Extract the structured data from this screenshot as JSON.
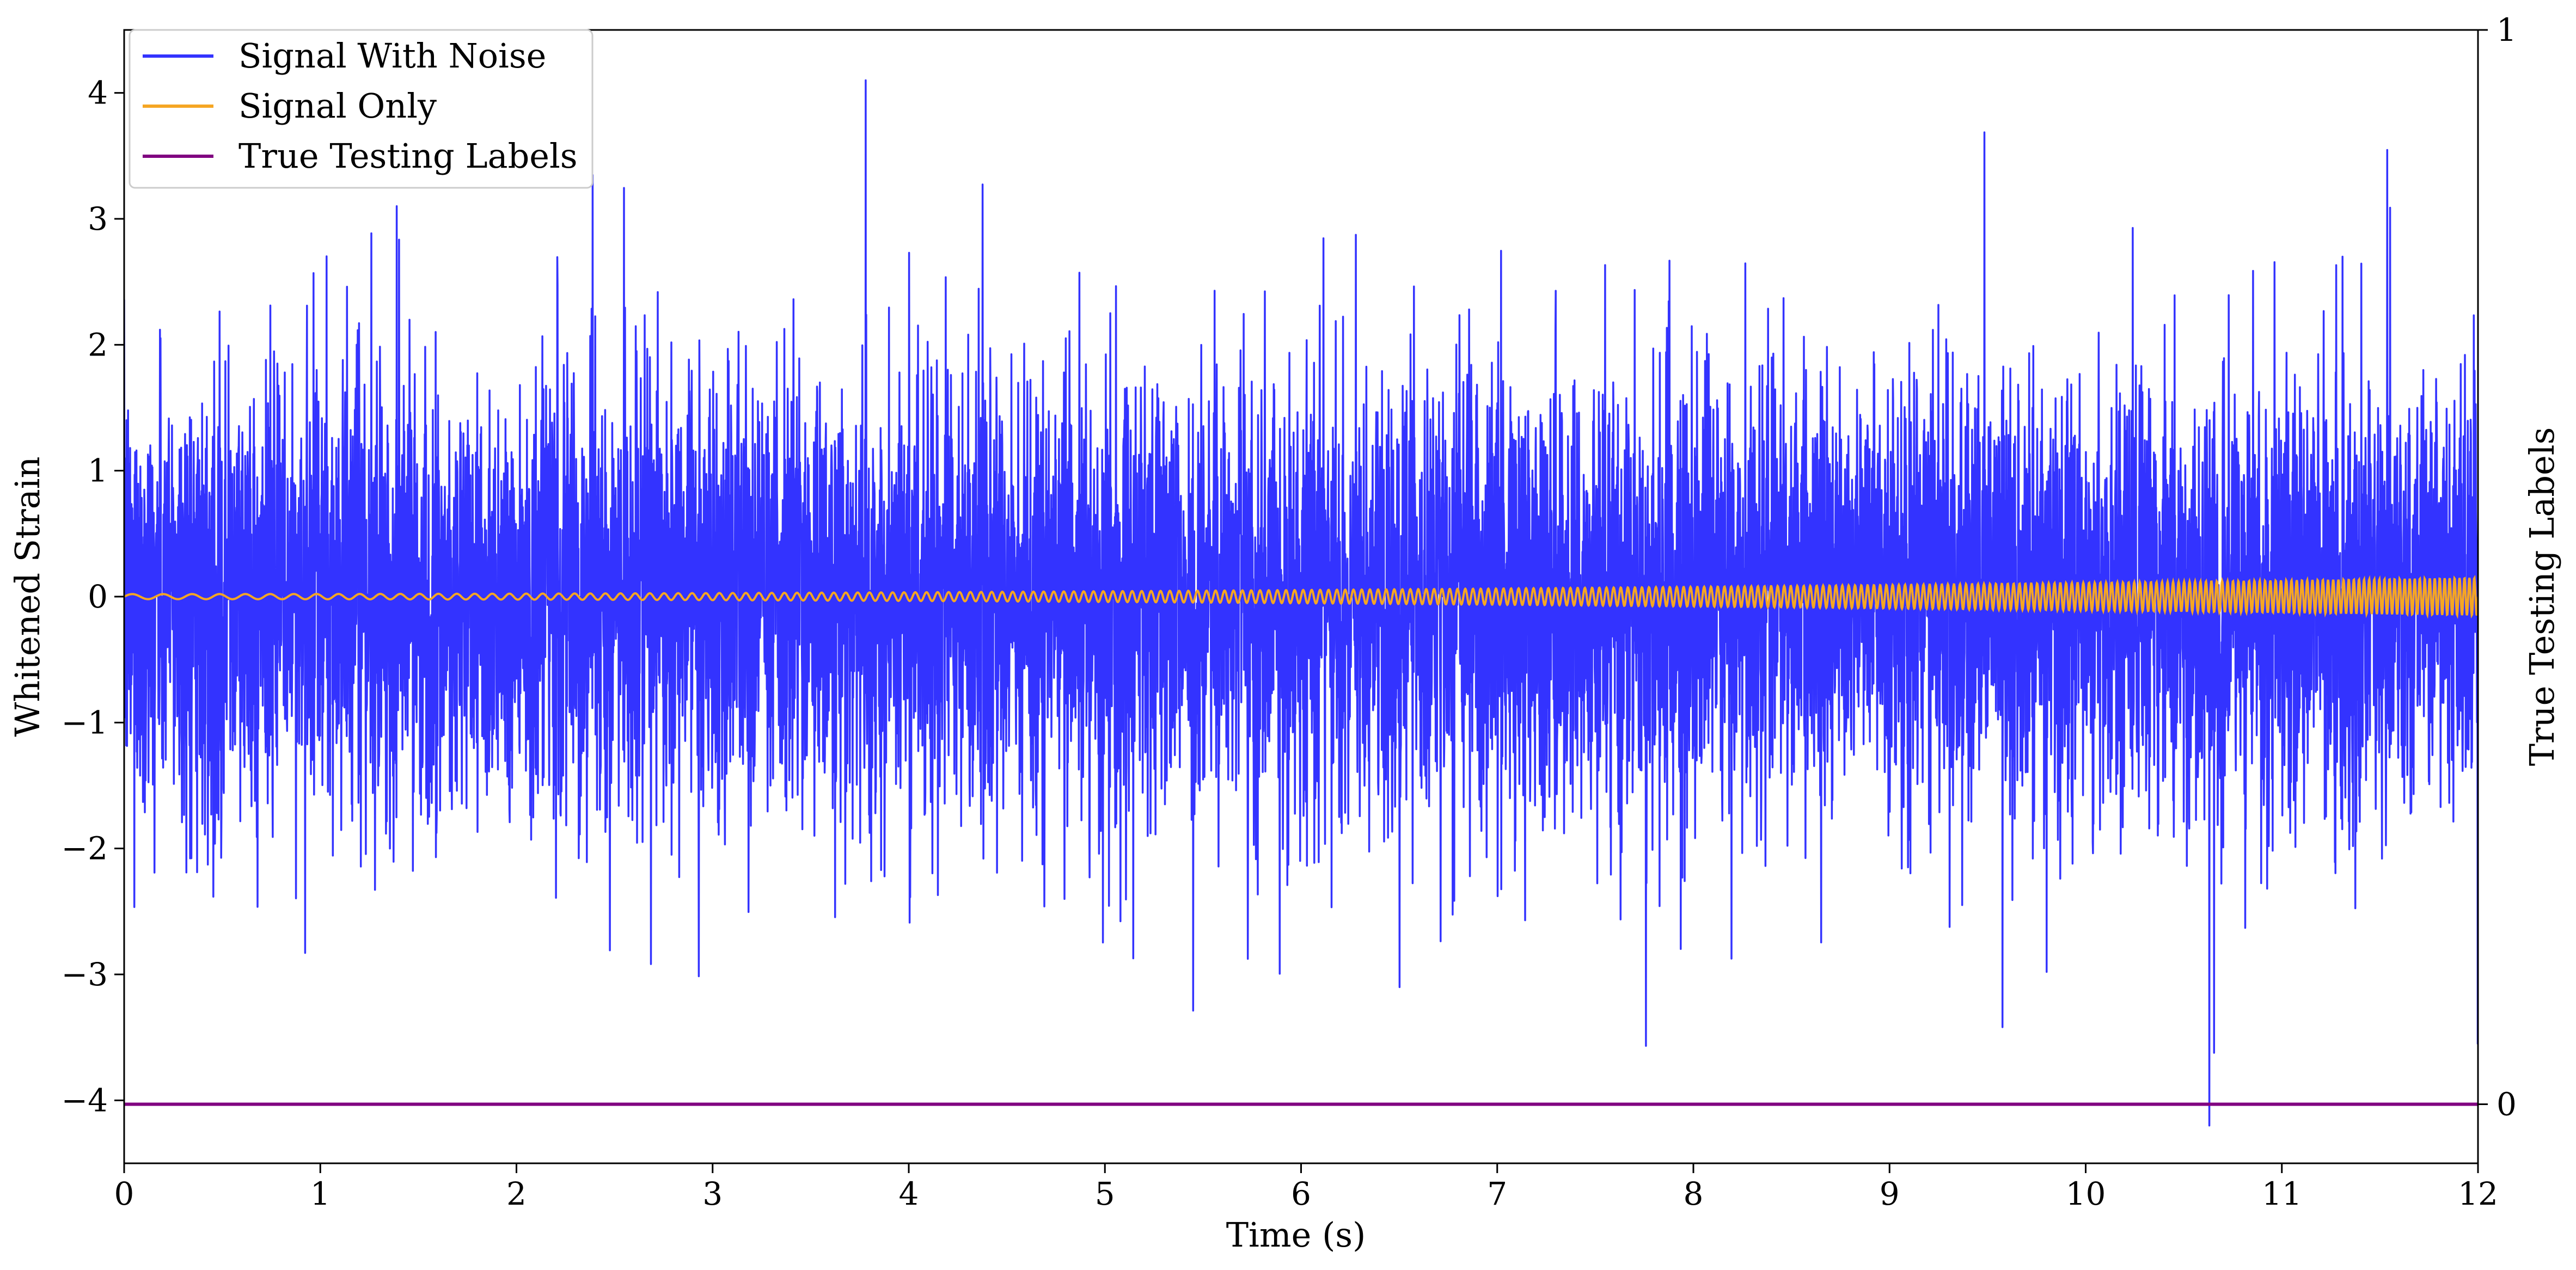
{
  "chart_data": {
    "type": "line",
    "xlabel": "Time (s)",
    "ylabel": "Whitened Strain",
    "y2label": "True Testing Labels",
    "xlim": [
      0,
      12
    ],
    "ylim": [
      -4.5,
      4.5
    ],
    "y2lim": [
      -0.055,
      1.0
    ],
    "x_ticks": [
      0,
      1,
      2,
      3,
      4,
      5,
      6,
      7,
      8,
      9,
      10,
      11,
      12
    ],
    "y_ticks": [
      -4,
      -3,
      -2,
      -1,
      0,
      1,
      2,
      3,
      4
    ],
    "y2_ticks": [
      0,
      1
    ],
    "grid": false,
    "legend_position": "upper-left",
    "series": [
      {
        "name": "Signal With Noise",
        "color": "#3333ff",
        "axis": "left",
        "description_values": {
          "typical_range": [
            -1.7,
            1.7
          ],
          "max_peak": 4.1,
          "max_peak_time": 3.78,
          "min_peak": -4.2,
          "min_peak_time": 10.63
        }
      },
      {
        "name": "Signal Only",
        "color": "#f5a623",
        "axis": "left",
        "chirp": {
          "start_amplitude": 0.02,
          "end_amplitude": 0.15,
          "start_cycles_per_s": 6,
          "end_cycles_per_s": 40
        }
      },
      {
        "name": "True Testing Labels",
        "color": "#800080",
        "axis": "right",
        "x": [
          0,
          12
        ],
        "values": [
          0,
          0
        ]
      }
    ]
  }
}
